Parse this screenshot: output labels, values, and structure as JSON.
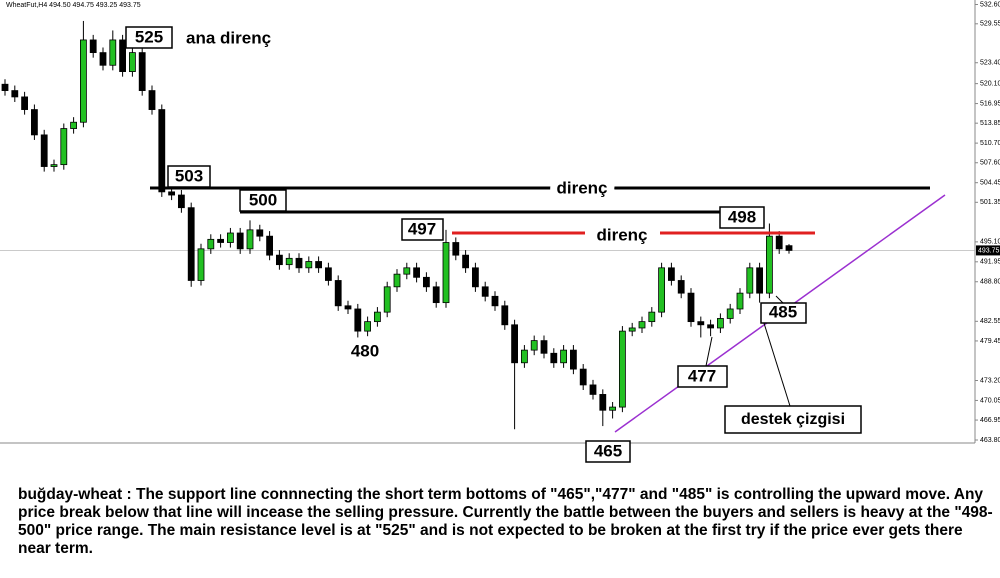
{
  "chart_data": {
    "type": "candlestick",
    "title": "WheatFut,H4 494.50 494.75 493.25 493.75",
    "open": [
      520,
      519,
      518,
      516,
      512,
      507,
      507.3,
      513,
      514,
      527,
      525,
      523,
      527,
      522,
      525,
      519,
      516,
      503,
      502.5,
      500.5,
      489,
      494,
      495.5,
      495,
      496.5,
      494,
      497,
      496,
      493,
      491.5,
      492.5,
      491,
      492,
      491,
      489,
      485,
      484.5,
      481,
      482.5,
      484,
      488,
      490,
      491,
      489.5,
      488,
      485.5,
      495,
      493,
      491,
      488,
      486.5,
      485,
      482,
      476,
      478,
      479.5,
      477.5,
      476,
      478,
      475,
      472.5,
      471,
      468.5,
      469,
      481,
      481.5,
      482.5,
      484,
      491,
      489,
      487,
      482.5,
      482,
      481.5,
      483,
      484.5,
      487,
      491,
      487,
      496,
      494.5
    ],
    "high": [
      520.8,
      519.8,
      518.8,
      516.8,
      512.8,
      508.1,
      513.8,
      514.8,
      530,
      527.8,
      525.8,
      528.5,
      527.8,
      526,
      525.8,
      519.8,
      516.8,
      504,
      503.3,
      501.3,
      494.8,
      496.3,
      496.3,
      497.3,
      497.3,
      498.5,
      497.8,
      496.8,
      493.8,
      493.3,
      493.3,
      492.8,
      492.8,
      491.8,
      489.8,
      485.8,
      485.3,
      483.3,
      484.8,
      488.8,
      490.8,
      491.8,
      491.8,
      490.3,
      488.8,
      497,
      495.8,
      493.8,
      491.8,
      488.8,
      487.3,
      485.8,
      482.8,
      478.8,
      480.3,
      480.3,
      478.3,
      478.8,
      478.8,
      475.8,
      473.3,
      471.8,
      469.8,
      481.8,
      482.3,
      483.3,
      484.8,
      491.8,
      491.8,
      489.8,
      487.8,
      483.3,
      482.8,
      483.8,
      485.3,
      487.8,
      491.8,
      491.8,
      498,
      496.8,
      494.75
    ],
    "low": [
      518.2,
      517.2,
      515.2,
      511.2,
      506.2,
      506.2,
      506.5,
      512.2,
      513.2,
      524.2,
      522.2,
      522.2,
      521.2,
      521.2,
      518.2,
      515.2,
      502.2,
      501.7,
      499.7,
      488,
      488.2,
      493.2,
      494.2,
      494.2,
      493.2,
      493.2,
      495.2,
      492.2,
      490.7,
      490.7,
      490.2,
      490.2,
      490.2,
      488.2,
      484.2,
      483.7,
      480,
      480.2,
      481.7,
      483.2,
      487.2,
      489.2,
      488.7,
      487.2,
      484.7,
      484.7,
      492.2,
      490.2,
      487.2,
      485.7,
      484.2,
      481.2,
      465.5,
      475.2,
      477.2,
      476.7,
      475.2,
      475.2,
      474.2,
      471.7,
      470.2,
      466,
      467.2,
      468.2,
      480.2,
      480.7,
      481.7,
      483.2,
      488.2,
      486.2,
      481.7,
      480,
      480.2,
      480.7,
      482.2,
      483.7,
      486.2,
      485.5,
      486.2,
      493.2,
      493.25
    ],
    "close": [
      519,
      518,
      516,
      512,
      507,
      507.3,
      513,
      514,
      527,
      525,
      523,
      527,
      522,
      525,
      519,
      516,
      503,
      502.5,
      500.5,
      489,
      494,
      495.5,
      495,
      496.5,
      494,
      497,
      496,
      493,
      491.5,
      492.5,
      491,
      492,
      491,
      489,
      485,
      484.5,
      481,
      482.5,
      484,
      488,
      490,
      491,
      489.5,
      488,
      485.5,
      495,
      493,
      491,
      488,
      486.5,
      485,
      482,
      476,
      478,
      479.5,
      477.5,
      476,
      478,
      475,
      472.5,
      471,
      468.5,
      469,
      481,
      481.5,
      482.5,
      484,
      491,
      489,
      487,
      482.5,
      482,
      481.5,
      483,
      484.5,
      487,
      491,
      487,
      496,
      494,
      493.75
    ],
    "up_color": "#22c022",
    "down_color": "#000000",
    "ylim": [
      463.8,
      533.31
    ],
    "yticks": [
      {
        "value": 532.6,
        "label": "532.60"
      },
      529.55,
      {
        "value": 523.4,
        "label": "523.40"
      },
      {
        "value": 520.1,
        "label": "520.10"
      },
      516.95,
      513.85,
      {
        "value": 510.7,
        "label": "510.70"
      },
      {
        "value": 507.6,
        "label": "507.60"
      },
      504.45,
      501.35,
      {
        "value": 495.1,
        "label": "495.10"
      },
      491.95,
      {
        "value": 488.8,
        "label": "488.80"
      },
      482.55,
      479.45,
      {
        "value": 473.2,
        "label": "473.20"
      },
      470.05,
      466.95,
      {
        "value": 463.8,
        "label": "463.80"
      }
    ],
    "current_price": {
      "value": 493.75,
      "label": "493.75"
    },
    "annotations": [
      "525",
      "ana direnç",
      "503",
      "500",
      "497",
      "498",
      "direnç",
      "direnç",
      "480",
      "465",
      "477",
      "485",
      "destek çizgisi"
    ],
    "caption": "buğday-wheat : The support line connnecting the short term bottoms of \"465\",\"477\" and \"485\" is controlling the upward move. Any price break below that line will incease the selling pressure. Currently the battle between the buyers and sellers is heavy at the \"498-500\" price range. The main resistance level is at \"525\" and is not expected to be broken at the first try if the price ever gets there near term."
  }
}
